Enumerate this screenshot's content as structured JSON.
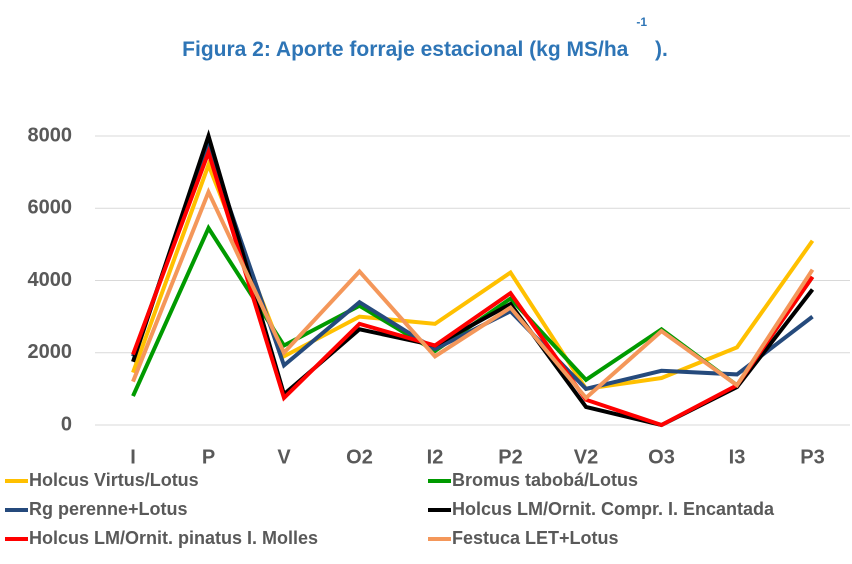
{
  "chart_data": {
    "type": "line",
    "title": "Figura 2: Aporte forraje estacional (kg MS/ha",
    "title_superscript": "-1",
    "title_end": ").",
    "categories": [
      "I",
      "P",
      "V",
      "O2",
      "I2",
      "P2",
      "V2",
      "O3",
      "I3",
      "P3"
    ],
    "ylim": [
      0,
      8000
    ],
    "yticks": [
      0,
      2000,
      4000,
      6000,
      8000
    ],
    "grid": true,
    "series": [
      {
        "name": "Holcus Virtus/Lotus",
        "color": "#ffc000",
        "values": [
          1450,
          7200,
          1900,
          3000,
          2800,
          4220,
          1000,
          1300,
          2150,
          5100
        ]
      },
      {
        "name": "Bromus tabobá/Lotus",
        "color": "#009a00",
        "values": [
          800,
          5450,
          2200,
          3300,
          2050,
          3500,
          1250,
          2650,
          1100,
          4100
        ]
      },
      {
        "name": "Rg perenne+Lotus",
        "color": "#254a7c",
        "values": [
          1900,
          7700,
          1650,
          3400,
          2100,
          3150,
          1000,
          1500,
          1400,
          3000
        ]
      },
      {
        "name": "Holcus LM/Ornit. Compr. I. Encantada",
        "color": "#000000",
        "values": [
          1750,
          8000,
          850,
          2650,
          2200,
          3350,
          500,
          0,
          1050,
          3750
        ]
      },
      {
        "name": "Holcus LM/Ornit. pinatus I. Molles",
        "color": "#ff0000",
        "values": [
          1950,
          7550,
          750,
          2800,
          2200,
          3650,
          700,
          0,
          1100,
          4100
        ]
      },
      {
        "name": "Festuca LET+Lotus",
        "color": "#f4975a",
        "values": [
          1200,
          6450,
          2000,
          4250,
          1900,
          3250,
          750,
          2600,
          1100,
          4300
        ]
      }
    ]
  }
}
